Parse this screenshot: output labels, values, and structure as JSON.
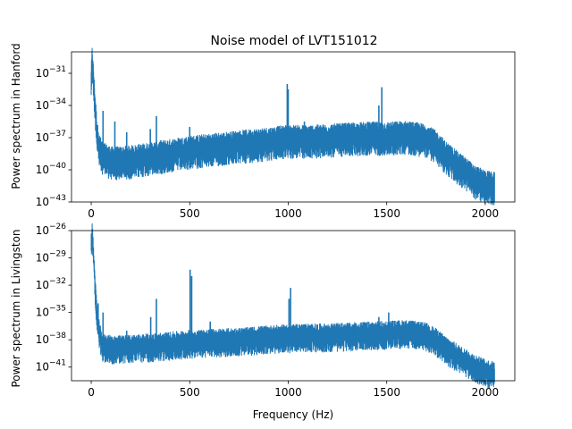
{
  "chart_data": [
    {
      "type": "line",
      "title": "Noise model of LVT151012",
      "xlabel": "",
      "ylabel": "Power spectrum in Hanford",
      "xlim": [
        -100,
        2150
      ],
      "ylim_log10": [
        -43,
        -29
      ],
      "x_ticks": [
        0,
        500,
        1000,
        1500,
        2000
      ],
      "y_ticks": [
        {
          "exp": -43,
          "label": "10−43"
        },
        {
          "exp": -40,
          "label": "10−40"
        },
        {
          "exp": -37,
          "label": "10−37"
        },
        {
          "exp": -34,
          "label": "10−34"
        },
        {
          "exp": -31,
          "label": "10−31"
        }
      ],
      "y_scale": "log",
      "color": "#1f77b4",
      "series": [
        {
          "x": [
            0,
            5,
            10,
            20,
            30,
            40,
            50,
            60,
            80,
            100,
            150,
            200,
            300,
            400,
            500,
            600,
            700,
            800,
            900,
            1000,
            1100,
            1200,
            1300,
            1400,
            1500,
            1600,
            1700,
            1750,
            1800,
            1850,
            1900,
            1950,
            2000,
            2048
          ],
          "y_log10": [
            -31.5,
            -29.6,
            -31.0,
            -34.0,
            -36.5,
            -37.8,
            -38.2,
            -38.6,
            -38.8,
            -39.0,
            -39.0,
            -38.9,
            -38.6,
            -38.3,
            -38.0,
            -37.8,
            -37.6,
            -37.4,
            -37.2,
            -37.0,
            -37.0,
            -36.9,
            -36.8,
            -36.7,
            -36.7,
            -36.6,
            -36.9,
            -37.5,
            -38.5,
            -39.3,
            -40.0,
            -40.8,
            -41.2,
            -41.4
          ]
        }
      ],
      "spikes": [
        {
          "x": 35,
          "y_log10": -36.5
        },
        {
          "x": 60,
          "y_log10": -34.5
        },
        {
          "x": 120,
          "y_log10": -35.5
        },
        {
          "x": 180,
          "y_log10": -36.5
        },
        {
          "x": 300,
          "y_log10": -36.2
        },
        {
          "x": 331,
          "y_log10": -35.0
        },
        {
          "x": 500,
          "y_log10": -36.0
        },
        {
          "x": 995,
          "y_log10": -32.0
        },
        {
          "x": 1000,
          "y_log10": -32.5
        },
        {
          "x": 1082,
          "y_log10": -35.5
        },
        {
          "x": 1280,
          "y_log10": -36.0
        },
        {
          "x": 1460,
          "y_log10": -34.0
        },
        {
          "x": 1475,
          "y_log10": -32.3
        }
      ]
    },
    {
      "type": "line",
      "title": "",
      "xlabel": "Frequency (Hz)",
      "ylabel": "Power spectrum in Livingston",
      "xlim": [
        -100,
        2150
      ],
      "ylim_log10": [
        -42.5,
        -26
      ],
      "x_ticks": [
        0,
        500,
        1000,
        1500,
        2000
      ],
      "y_ticks": [
        {
          "exp": -41,
          "label": "10−41"
        },
        {
          "exp": -38,
          "label": "10−38"
        },
        {
          "exp": -35,
          "label": "10−35"
        },
        {
          "exp": -32,
          "label": "10−32"
        },
        {
          "exp": -29,
          "label": "10−29"
        },
        {
          "exp": -26,
          "label": "10−26"
        }
      ],
      "y_scale": "log",
      "color": "#1f77b4",
      "series": [
        {
          "x": [
            0,
            5,
            10,
            20,
            30,
            40,
            50,
            60,
            80,
            100,
            150,
            200,
            300,
            400,
            500,
            600,
            700,
            800,
            900,
            1000,
            1100,
            1200,
            1300,
            1400,
            1500,
            1600,
            1700,
            1750,
            1800,
            1850,
            1900,
            1950,
            2000,
            2048
          ],
          "y_log10": [
            -27.5,
            -26.2,
            -28.0,
            -32.0,
            -35.5,
            -37.0,
            -38.0,
            -38.5,
            -38.6,
            -38.7,
            -38.7,
            -38.6,
            -38.5,
            -38.3,
            -38.1,
            -38.0,
            -37.9,
            -37.8,
            -37.6,
            -37.5,
            -37.4,
            -37.4,
            -37.3,
            -37.2,
            -37.1,
            -37.0,
            -37.3,
            -37.9,
            -38.8,
            -39.5,
            -40.2,
            -40.8,
            -41.3,
            -41.6
          ]
        }
      ],
      "spikes": [
        {
          "x": 35,
          "y_log10": -34.0
        },
        {
          "x": 60,
          "y_log10": -35.0
        },
        {
          "x": 180,
          "y_log10": -37.0
        },
        {
          "x": 302,
          "y_log10": -35.5
        },
        {
          "x": 331,
          "y_log10": -33.5
        },
        {
          "x": 502,
          "y_log10": -30.3
        },
        {
          "x": 510,
          "y_log10": -31.0
        },
        {
          "x": 604,
          "y_log10": -36.0
        },
        {
          "x": 1004,
          "y_log10": -33.5
        },
        {
          "x": 1012,
          "y_log10": -32.3
        },
        {
          "x": 1083,
          "y_log10": -36.3
        },
        {
          "x": 1330,
          "y_log10": -36.5
        },
        {
          "x": 1460,
          "y_log10": -35.5
        },
        {
          "x": 1510,
          "y_log10": -35.0
        }
      ]
    }
  ]
}
